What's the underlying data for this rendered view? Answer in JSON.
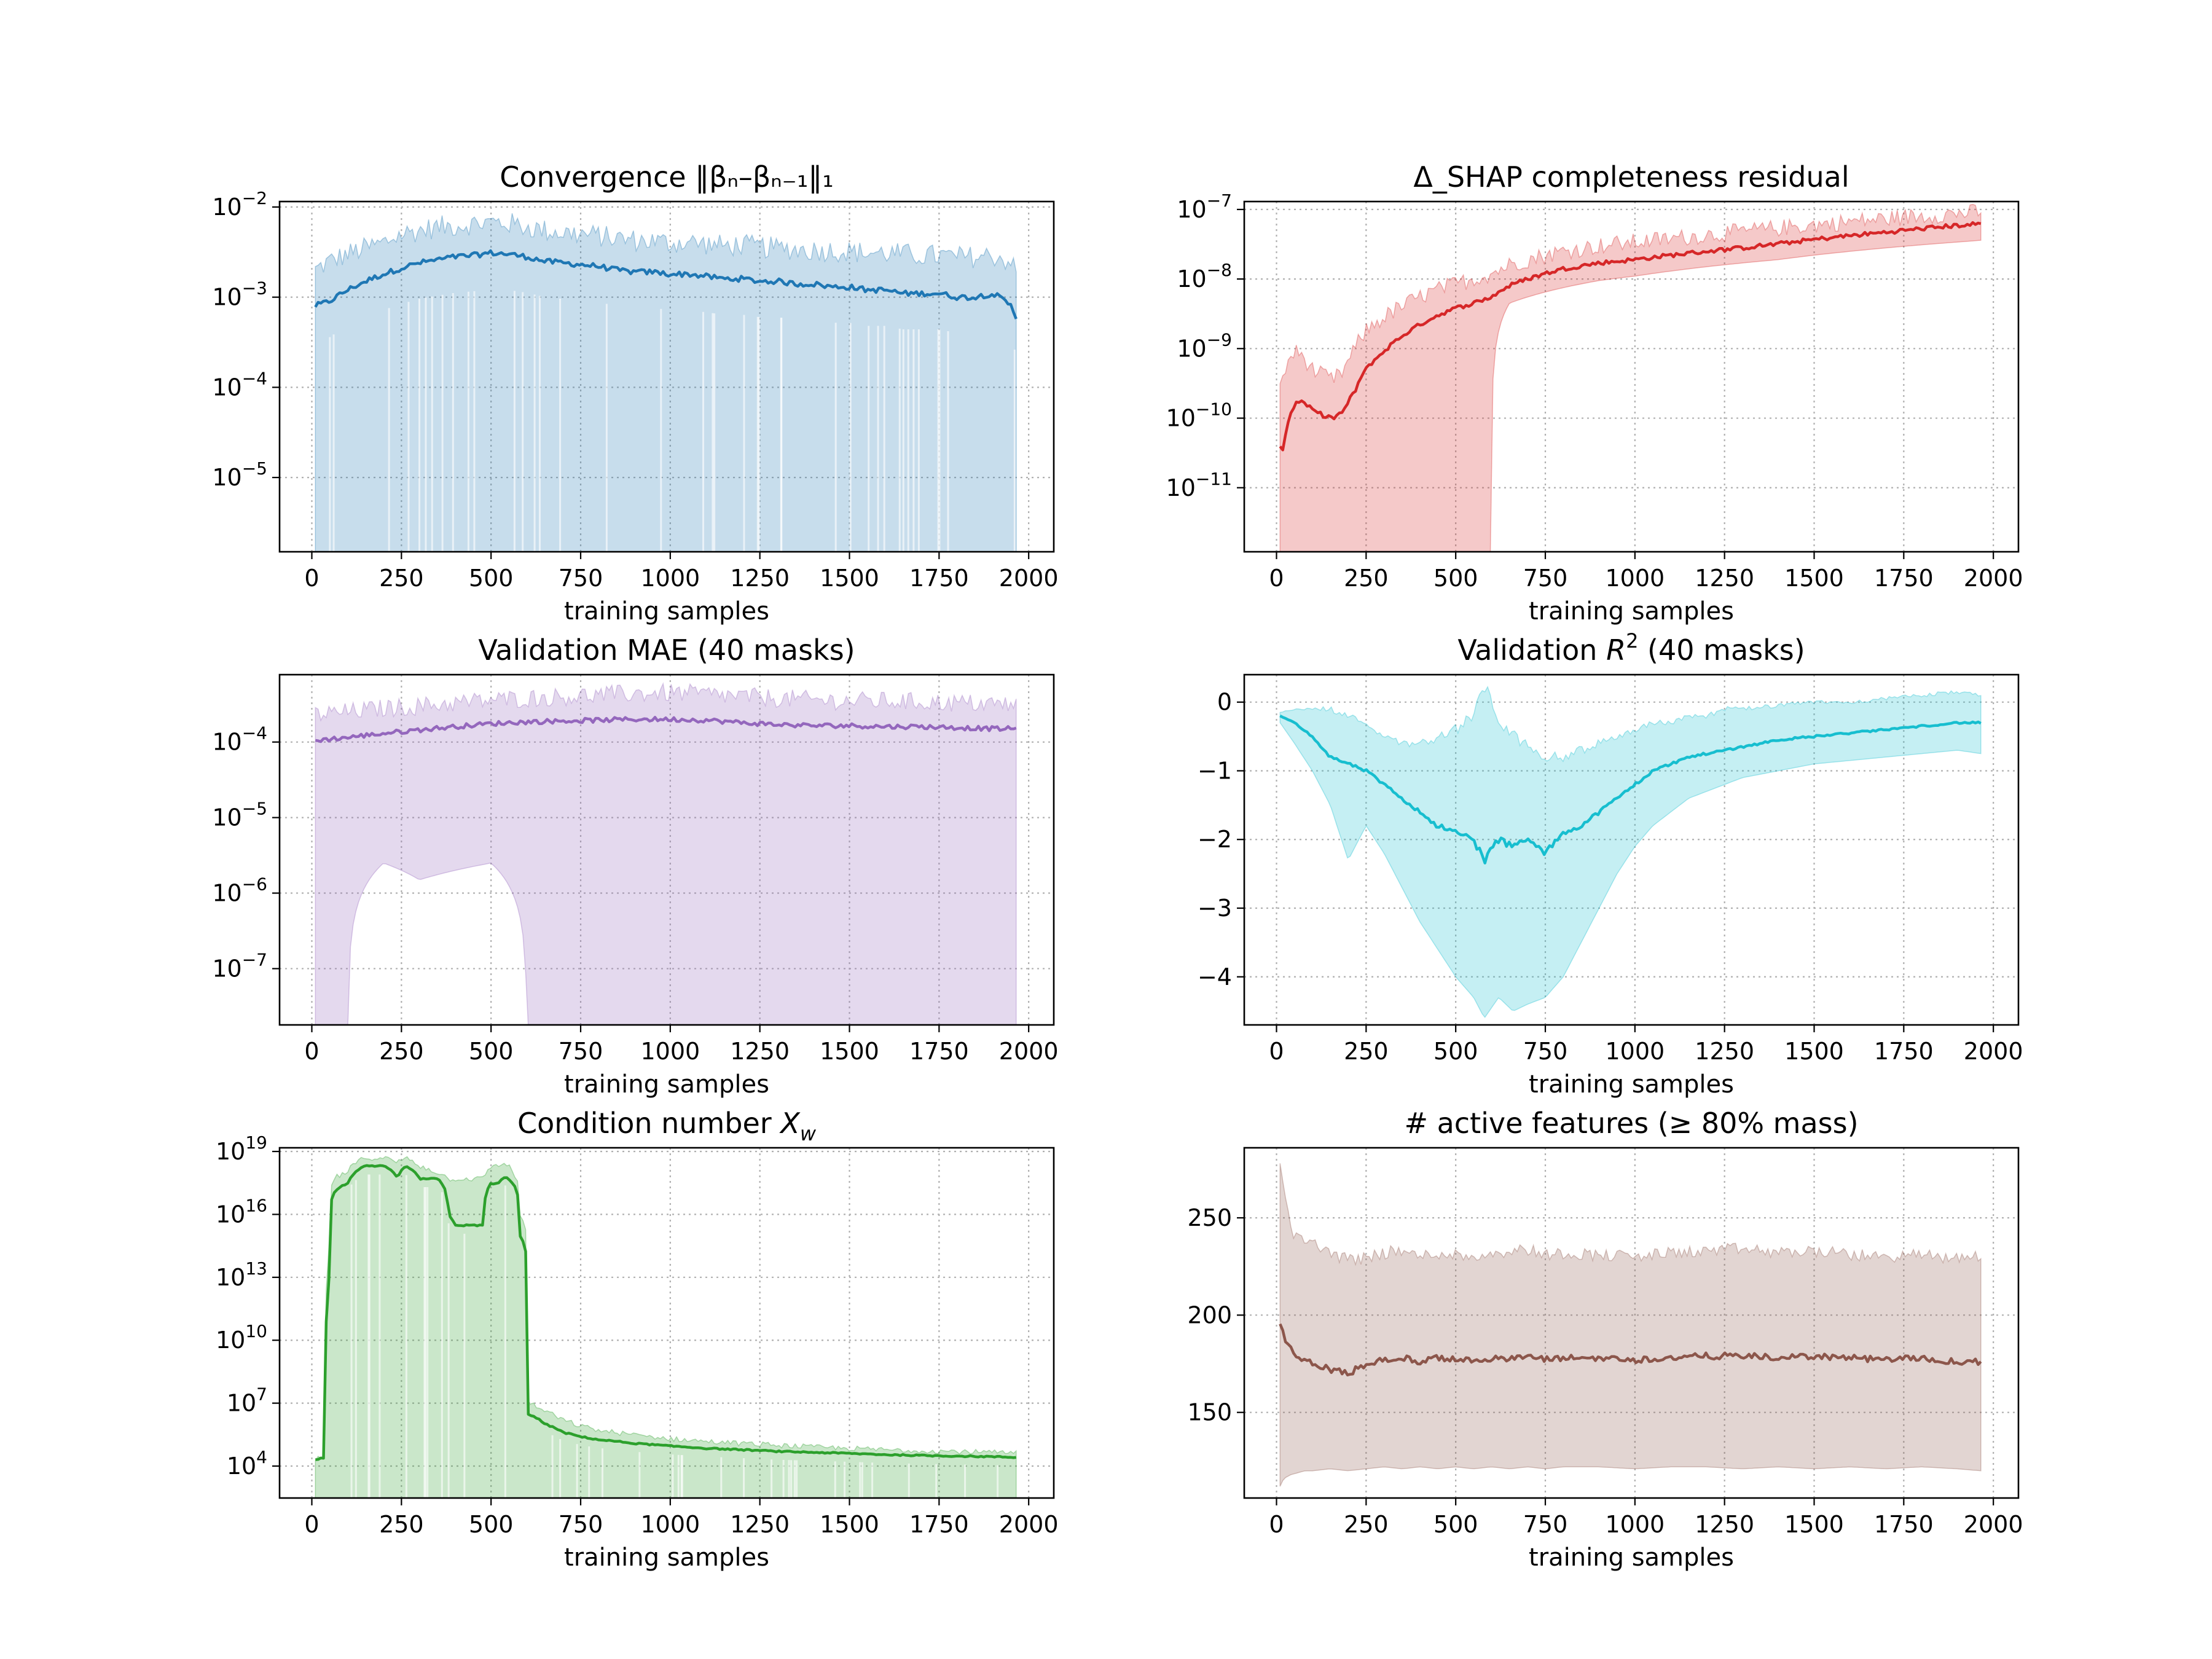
{
  "chart_data": [
    {
      "type": "line",
      "title": "Convergence ‖βₙ–βₙ₋₁‖₁",
      "xlabel": "training samples",
      "ylabel": "",
      "yscale": "log",
      "xlim": [
        -90,
        2070
      ],
      "ylim": [
        1.5e-06,
        0.0115
      ],
      "xticks": [
        0,
        250,
        500,
        750,
        1000,
        1250,
        1500,
        1750,
        2000
      ],
      "yticks": [
        {
          "value": 0.01,
          "base": "10",
          "exp": "−2"
        },
        {
          "value": 0.001,
          "base": "10",
          "exp": "−3"
        },
        {
          "value": 0.0001,
          "base": "10",
          "exp": "−4"
        },
        {
          "value": 1e-05,
          "base": "10",
          "exp": "−5"
        }
      ],
      "grid": true,
      "color": "#1f77b4",
      "band_color": "#1f77b4",
      "x": [
        10,
        50,
        100,
        150,
        200,
        250,
        300,
        350,
        400,
        450,
        500,
        550,
        600,
        650,
        700,
        750,
        800,
        850,
        900,
        950,
        1000,
        1050,
        1100,
        1150,
        1200,
        1250,
        1300,
        1350,
        1400,
        1450,
        1500,
        1550,
        1600,
        1650,
        1700,
        1750,
        1800,
        1850,
        1900,
        1950,
        1965
      ],
      "mean": [
        0.0008,
        0.0009,
        0.0012,
        0.0015,
        0.0018,
        0.0021,
        0.0024,
        0.0026,
        0.0028,
        0.0029,
        0.0031,
        0.003,
        0.0028,
        0.0025,
        0.0024,
        0.0023,
        0.0022,
        0.002,
        0.0019,
        0.0019,
        0.0018,
        0.0018,
        0.0017,
        0.0016,
        0.0016,
        0.0015,
        0.0015,
        0.0014,
        0.0014,
        0.0013,
        0.0013,
        0.0012,
        0.0012,
        0.0011,
        0.0011,
        0.0011,
        0.001,
        0.001,
        0.0011,
        0.0008,
        0.0006
      ],
      "upper": [
        0.002,
        0.0025,
        0.003,
        0.0035,
        0.004,
        0.005,
        0.0055,
        0.006,
        0.0062,
        0.0065,
        0.0068,
        0.0066,
        0.006,
        0.0055,
        0.0052,
        0.005,
        0.0048,
        0.0045,
        0.0043,
        0.0042,
        0.004,
        0.0041,
        0.0039,
        0.0037,
        0.0038,
        0.0036,
        0.0035,
        0.0034,
        0.0033,
        0.0033,
        0.0032,
        0.0031,
        0.0031,
        0.003,
        0.0029,
        0.0029,
        0.0028,
        0.0028,
        0.0029,
        0.0025,
        0.0018
      ],
      "lower_shown": "extends below axis across the full range, with scattered dips"
    },
    {
      "type": "line",
      "title": "Δ_SHAP completeness residual",
      "xlabel": "training samples",
      "ylabel": "",
      "yscale": "log",
      "xlim": [
        -90,
        2070
      ],
      "ylim": [
        1.2e-12,
        1.3e-07
      ],
      "xticks": [
        0,
        250,
        500,
        750,
        1000,
        1250,
        1500,
        1750,
        2000
      ],
      "yticks": [
        {
          "value": 1e-07,
          "base": "10",
          "exp": "−7"
        },
        {
          "value": 1e-08,
          "base": "10",
          "exp": "−8"
        },
        {
          "value": 1e-09,
          "base": "10",
          "exp": "−9"
        },
        {
          "value": 1e-10,
          "base": "10",
          "exp": "−10"
        },
        {
          "value": 1e-11,
          "base": "10",
          "exp": "−11"
        }
      ],
      "grid": true,
      "color": "#d62728",
      "band_color": "#d62728",
      "x": [
        10,
        20,
        40,
        60,
        80,
        100,
        130,
        160,
        190,
        220,
        250,
        300,
        350,
        400,
        450,
        500,
        550,
        600,
        650,
        700,
        750,
        800,
        900,
        1000,
        1100,
        1200,
        1300,
        1400,
        1500,
        1600,
        1700,
        1800,
        1900,
        1965
      ],
      "mean": [
        4e-11,
        3.5e-11,
        1.2e-10,
        1.8e-10,
        1.6e-10,
        1.3e-10,
        1.1e-10,
        1e-10,
        1.3e-10,
        2.5e-10,
        5e-10,
        9e-10,
        1.5e-09,
        2.2e-09,
        3e-09,
        3.8e-09,
        4.5e-09,
        5.5e-09,
        8e-09,
        1e-08,
        1.2e-08,
        1.4e-08,
        1.7e-08,
        1.9e-08,
        2.2e-08,
        2.5e-08,
        2.8e-08,
        3.2e-08,
        3.7e-08,
        4.2e-08,
        4.7e-08,
        5.3e-08,
        5.9e-08,
        6.2e-08
      ],
      "upper": [
        2.5e-10,
        4e-10,
        8e-10,
        9e-10,
        7e-10,
        5e-10,
        4e-10,
        3.5e-10,
        5e-10,
        1e-09,
        1.8e-09,
        2.8e-09,
        4e-09,
        5.5e-09,
        7e-09,
        8.5e-09,
        1e-08,
        1.2e-08,
        1.6e-08,
        1.9e-08,
        2.2e-08,
        2.5e-08,
        3e-08,
        3.4e-08,
        3.8e-08,
        4.3e-08,
        4.8e-08,
        5.4e-08,
        6e-08,
        6.7e-08,
        7.4e-08,
        8.1e-08,
        8.8e-08,
        9.2e-08
      ],
      "lower": [
        1e-12,
        1e-12,
        1e-12,
        1e-12,
        1e-12,
        1e-12,
        1e-12,
        1e-12,
        1e-12,
        1e-12,
        1e-12,
        1e-12,
        1e-12,
        1e-12,
        1e-12,
        1e-12,
        1e-12,
        1e-12,
        4.5e-09,
        5.5e-09,
        6.5e-09,
        7.5e-09,
        9.5e-09,
        1.1e-08,
        1.3e-08,
        1.5e-08,
        1.7e-08,
        1.9e-08,
        2.2e-08,
        2.5e-08,
        2.8e-08,
        3.1e-08,
        3.4e-08,
        3.6e-08
      ]
    },
    {
      "type": "line",
      "title": "Validation MAE (40 masks)",
      "xlabel": "training samples",
      "ylabel": "",
      "yscale": "log",
      "xlim": [
        -90,
        2070
      ],
      "ylim": [
        1.8e-08,
        0.00078
      ],
      "xticks": [
        0,
        250,
        500,
        750,
        1000,
        1250,
        1500,
        1750,
        2000
      ],
      "yticks": [
        {
          "value": 0.0001,
          "base": "10",
          "exp": "−4"
        },
        {
          "value": 1e-05,
          "base": "10",
          "exp": "−5"
        },
        {
          "value": 1e-06,
          "base": "10",
          "exp": "−6"
        },
        {
          "value": 1e-07,
          "base": "10",
          "exp": "−7"
        }
      ],
      "grid": true,
      "color": "#9467bd",
      "band_color": "#9467bd",
      "x": [
        10,
        100,
        200,
        300,
        400,
        500,
        600,
        700,
        800,
        900,
        1000,
        1100,
        1200,
        1300,
        1400,
        1500,
        1600,
        1700,
        1800,
        1900,
        1965
      ],
      "mean": [
        0.000105,
        0.000115,
        0.00013,
        0.000145,
        0.00016,
        0.000175,
        0.000185,
        0.00019,
        0.000195,
        0.0002,
        0.0002,
        0.000195,
        0.00018,
        0.00017,
        0.000165,
        0.000165,
        0.00016,
        0.00016,
        0.000155,
        0.00015,
        0.00015
      ],
      "upper": [
        0.00023,
        0.00025,
        0.00028,
        0.0003,
        0.00033,
        0.00036,
        0.00038,
        0.0004,
        0.00042,
        0.00044,
        0.00045,
        0.00043,
        0.0004,
        0.00038,
        0.00036,
        0.00035,
        0.00035,
        0.00034,
        0.00033,
        0.00032,
        0.00031
      ],
      "lower": [
        1e-09,
        1e-09,
        2.5e-06,
        1.5e-06,
        2e-06,
        2.5e-06,
        1e-09,
        1e-09,
        1e-09,
        1e-09,
        1e-09,
        1e-09,
        1e-09,
        1e-09,
        1e-09,
        1e-09,
        1e-09,
        1e-09,
        1e-09,
        1e-09,
        1e-09
      ]
    },
    {
      "type": "line",
      "title": "Validation R² (40 masks)",
      "title_parts": {
        "prefix": "Validation ",
        "var": "R",
        "sup": "2",
        "suffix": " (40 masks)"
      },
      "xlabel": "training samples",
      "ylabel": "",
      "yscale": "linear",
      "xlim": [
        -90,
        2070
      ],
      "ylim": [
        -4.7,
        0.4
      ],
      "xticks": [
        0,
        250,
        500,
        750,
        1000,
        1250,
        1500,
        1750,
        2000
      ],
      "yticks": [
        {
          "value": 0,
          "label": "0"
        },
        {
          "value": -1,
          "label": "−1"
        },
        {
          "value": -2,
          "label": "−2"
        },
        {
          "value": -3,
          "label": "−3"
        },
        {
          "value": -4,
          "label": "−4"
        }
      ],
      "grid": true,
      "color": "#17becf",
      "band_color": "#17becf",
      "x": [
        10,
        50,
        100,
        150,
        200,
        250,
        300,
        350,
        400,
        450,
        500,
        550,
        580,
        620,
        660,
        700,
        750,
        800,
        850,
        900,
        950,
        1000,
        1050,
        1100,
        1150,
        1200,
        1250,
        1300,
        1400,
        1500,
        1600,
        1700,
        1800,
        1900,
        1965
      ],
      "mean": [
        -0.2,
        -0.3,
        -0.5,
        -0.8,
        -0.9,
        -1.0,
        -1.2,
        -1.4,
        -1.6,
        -1.8,
        -1.9,
        -2.0,
        -2.3,
        -2.0,
        -2.1,
        -2.0,
        -2.2,
        -1.9,
        -1.8,
        -1.6,
        -1.4,
        -1.2,
        -1.0,
        -0.9,
        -0.8,
        -0.75,
        -0.7,
        -0.65,
        -0.55,
        -0.5,
        -0.45,
        -0.4,
        -0.35,
        -0.3,
        -0.3
      ],
      "upper": [
        -0.15,
        -0.1,
        -0.1,
        -0.1,
        -0.2,
        -0.3,
        -0.5,
        -0.6,
        -0.6,
        -0.5,
        -0.4,
        -0.2,
        0.25,
        -0.3,
        -0.5,
        -0.6,
        -0.8,
        -0.8,
        -0.7,
        -0.6,
        -0.5,
        -0.4,
        -0.3,
        -0.3,
        -0.2,
        -0.2,
        -0.1,
        -0.1,
        -0.05,
        0.0,
        0.0,
        0.05,
        0.1,
        0.15,
        0.1
      ],
      "lower": [
        -0.3,
        -0.6,
        -1.0,
        -1.5,
        -2.3,
        -1.8,
        -2.2,
        -2.7,
        -3.2,
        -3.6,
        -4.0,
        -4.3,
        -4.6,
        -4.3,
        -4.5,
        -4.4,
        -4.3,
        -4.0,
        -3.5,
        -3.0,
        -2.5,
        -2.1,
        -1.8,
        -1.6,
        -1.4,
        -1.3,
        -1.2,
        -1.1,
        -1.0,
        -0.9,
        -0.85,
        -0.8,
        -0.75,
        -0.7,
        -0.75
      ]
    },
    {
      "type": "line",
      "title": "Condition number X_w",
      "title_parts": {
        "prefix": "Condition number  ",
        "var": "X",
        "sub": "w"
      },
      "xlabel": "training samples",
      "ylabel": "",
      "yscale": "log",
      "xlim": [
        -90,
        2070
      ],
      "ylim": [
        300.0,
        1.5e+19
      ],
      "xticks": [
        0,
        250,
        500,
        750,
        1000,
        1250,
        1500,
        1750,
        2000
      ],
      "yticks": [
        {
          "value": 1e+19,
          "base": "10",
          "exp": "19"
        },
        {
          "value": 1e+16,
          "base": "10",
          "exp": "16"
        },
        {
          "value": 10000000000000.0,
          "base": "10",
          "exp": "13"
        },
        {
          "value": 10000000000.0,
          "base": "10",
          "exp": "10"
        },
        {
          "value": 10000000.0,
          "base": "10",
          "exp": "7"
        },
        {
          "value": 10000.0,
          "base": "10",
          "exp": "4"
        }
      ],
      "grid": true,
      "color": "#2ca02c",
      "band_color": "#2ca02c",
      "x": [
        10,
        30,
        40,
        50,
        60,
        100,
        150,
        200,
        240,
        260,
        300,
        350,
        380,
        400,
        450,
        480,
        500,
        520,
        540,
        560,
        580,
        600,
        650,
        700,
        750,
        800,
        900,
        1000,
        1100,
        1200,
        1300,
        1400,
        1500,
        1600,
        1700,
        1800,
        1900,
        1965
      ],
      "mean": [
        20000.0,
        25000.0,
        25000.0,
        10000000000000.0,
        1e+17,
        3e+17,
        2e+18,
        2e+18,
        5e+17,
        2e+18,
        5e+17,
        5e+17,
        1e+16,
        3000000000000000.0,
        3000000000000000.0,
        3000000000000000.0,
        3e+17,
        3e+17,
        6e+17,
        3e+17,
        1000000000000000.0,
        3000000.0,
        1000000.0,
        400000.0,
        250000.0,
        180000.0,
        120000.0,
        90000.0,
        70000.0,
        60000.0,
        50000.0,
        45000.0,
        40000.0,
        35000.0,
        32000.0,
        30000.0,
        28000.0,
        26000.0
      ],
      "upper": [
        20000.0,
        25000.0,
        25000.0,
        300000000000000.0,
        5e+17,
        1e+18,
        5e+18,
        5e+18,
        3e+18,
        5e+18,
        2e+18,
        1e+18,
        5e+17,
        5e+17,
        5e+17,
        5e+17,
        2e+18,
        2e+18,
        3e+18,
        1e+18,
        1e+16,
        10000000.0,
        4000000.0,
        1500000.0,
        800000.0,
        500000.0,
        300000.0,
        200000.0,
        150000.0,
        120000.0,
        100000.0,
        80000.0,
        70000.0,
        60000.0,
        55000.0,
        50000.0,
        45000.0,
        40000.0
      ]
    },
    {
      "type": "line",
      "title": "# active features (≥ 80% mass)",
      "xlabel": "training samples",
      "ylabel": "",
      "yscale": "linear",
      "xlim": [
        -90,
        2070
      ],
      "ylim": [
        106,
        286
      ],
      "xticks": [
        0,
        250,
        500,
        750,
        1000,
        1250,
        1500,
        1750,
        2000
      ],
      "yticks": [
        {
          "value": 250,
          "label": "250"
        },
        {
          "value": 200,
          "label": "200"
        },
        {
          "value": 150,
          "label": "150"
        }
      ],
      "grid": true,
      "color": "#8c564b",
      "band_color": "#8c564b",
      "x": [
        10,
        20,
        40,
        60,
        80,
        100,
        150,
        200,
        250,
        300,
        350,
        400,
        450,
        500,
        550,
        600,
        650,
        700,
        750,
        800,
        900,
        1000,
        1100,
        1200,
        1300,
        1400,
        1500,
        1600,
        1700,
        1800,
        1900,
        1965
      ],
      "mean": [
        197,
        190,
        182,
        178,
        176,
        175,
        172,
        170,
        175,
        177,
        178,
        176,
        178,
        177,
        177,
        178,
        177,
        179,
        177,
        178,
        178,
        177,
        178,
        179,
        179,
        178,
        179,
        178,
        177,
        178,
        176,
        176
      ],
      "upper": [
        280,
        262,
        245,
        240,
        238,
        236,
        233,
        228,
        230,
        232,
        233,
        230,
        232,
        231,
        230,
        232,
        233,
        234,
        231,
        232,
        231,
        230,
        232,
        233,
        234,
        232,
        233,
        231,
        230,
        231,
        229,
        231
      ],
      "lower": [
        112,
        116,
        118,
        119,
        120,
        120,
        121,
        120,
        121,
        122,
        121,
        122,
        121,
        122,
        121,
        122,
        121,
        122,
        121,
        122,
        122,
        121,
        122,
        122,
        121,
        122,
        121,
        122,
        121,
        122,
        121,
        120
      ]
    }
  ]
}
